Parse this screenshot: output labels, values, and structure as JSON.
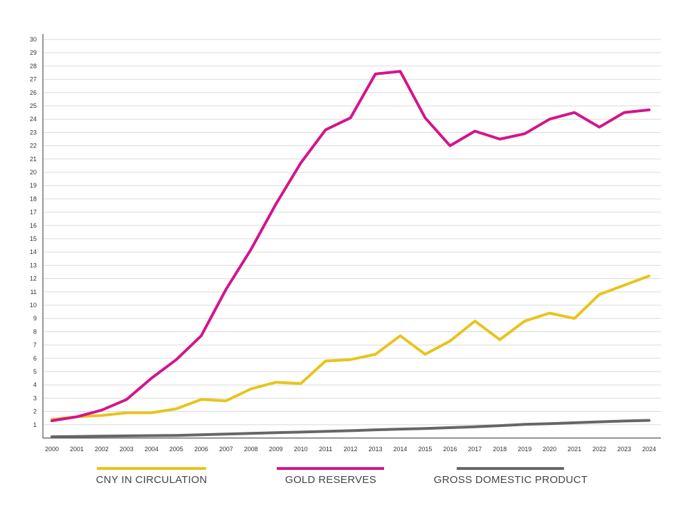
{
  "chart_data": {
    "type": "line",
    "x": [
      "2000",
      "2001",
      "2002",
      "2003",
      "2004",
      "2005",
      "2006",
      "2007",
      "2008",
      "2009",
      "2010",
      "2011",
      "2012",
      "2013",
      "2014",
      "2015",
      "2016",
      "2017",
      "2018",
      "2019",
      "2020",
      "2021",
      "2022",
      "2023",
      "2024"
    ],
    "yticks": [
      1,
      2,
      3,
      4,
      5,
      6,
      7,
      8,
      9,
      10,
      11,
      12,
      13,
      14,
      15,
      16,
      17,
      18,
      19,
      20,
      21,
      22,
      23,
      24,
      25,
      26,
      27,
      28,
      29,
      30
    ],
    "ylim": [
      0,
      30
    ],
    "grid": true,
    "legend_position": "bottom",
    "series": [
      {
        "name": "CNY IN CIRCULATION",
        "color": "#e8c41c",
        "values": [
          1.4,
          1.6,
          1.7,
          1.9,
          1.9,
          2.2,
          2.9,
          2.8,
          3.7,
          4.2,
          4.1,
          5.8,
          5.9,
          6.3,
          7.7,
          6.3,
          7.3,
          8.8,
          7.4,
          8.8,
          9.4,
          9.0,
          10.8,
          11.5,
          12.2
        ]
      },
      {
        "name": "GOLD RESERVES",
        "color": "#d4148c",
        "values": [
          1.3,
          1.6,
          2.1,
          2.9,
          4.5,
          5.9,
          7.7,
          11.2,
          14.2,
          17.6,
          20.7,
          23.2,
          24.1,
          27.4,
          27.6,
          24.1,
          22.0,
          23.1,
          22.5,
          22.9,
          24.0,
          24.5,
          23.4,
          24.5,
          24.7
        ]
      },
      {
        "name": "GROSS DOMESTIC PRODUCT",
        "color": "#666666",
        "values": [
          0.1,
          0.12,
          0.14,
          0.16,
          0.18,
          0.2,
          0.25,
          0.3,
          0.35,
          0.4,
          0.45,
          0.5,
          0.55,
          0.62,
          0.67,
          0.72,
          0.78,
          0.85,
          0.93,
          1.03,
          1.08,
          1.15,
          1.22,
          1.28,
          1.33
        ]
      }
    ]
  }
}
